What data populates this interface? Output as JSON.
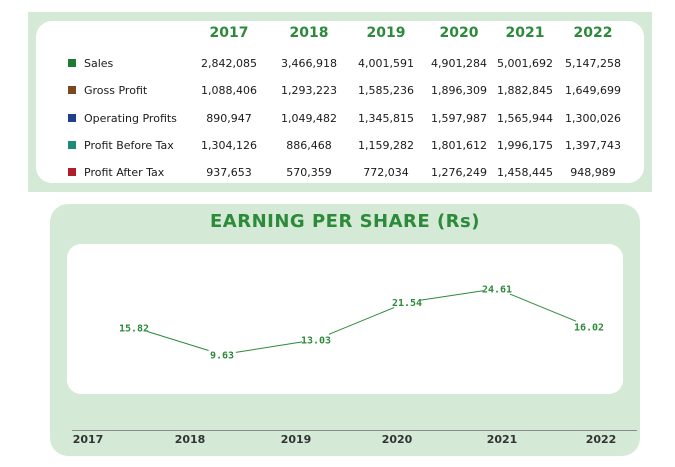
{
  "table": {
    "years": [
      "2017",
      "2018",
      "2019",
      "2020",
      "2021",
      "2022"
    ],
    "rows": [
      {
        "label": "Sales",
        "color": "#1e7a34",
        "values": [
          "2,842,085",
          "3,466,918",
          "4,001,591",
          "4,901,284",
          "5,001,692",
          "5,147,258"
        ]
      },
      {
        "label": "Gross Profit",
        "color": "#7a4a1e",
        "values": [
          "1,088,406",
          "1,293,223",
          "1,585,236",
          "1,896,309",
          "1,882,845",
          "1,649,699"
        ]
      },
      {
        "label": "Operating Profits",
        "color": "#1e3f8a",
        "values": [
          "890,947",
          "1,049,482",
          "1,345,815",
          "1,597,987",
          "1,565,944",
          "1,300,026"
        ]
      },
      {
        "label": "Profit Before Tax",
        "color": "#1e8a7a",
        "values": [
          "1,304,126",
          "886,468",
          "1,159,282",
          "1,801,612",
          "1,996,175",
          "1,397,743"
        ]
      },
      {
        "label": "Profit After Tax",
        "color": "#b01e2a",
        "values": [
          "937,653",
          "570,359",
          "772,034",
          "1,276,249",
          "1,458,445",
          "948,989"
        ]
      }
    ]
  },
  "chart_data": {
    "type": "line",
    "title": "EARNING PER SHARE (Rs)",
    "x": [
      "2017",
      "2018",
      "2019",
      "2020",
      "2021",
      "2022"
    ],
    "values": [
      15.82,
      9.63,
      13.03,
      21.54,
      24.61,
      16.02
    ],
    "data_labels": [
      "15.82",
      "9.63",
      "13.03",
      "21.54",
      "24.61",
      "16.02"
    ],
    "ylim": [
      5,
      30
    ],
    "grid": false,
    "line_color": "#2c8a3a"
  }
}
